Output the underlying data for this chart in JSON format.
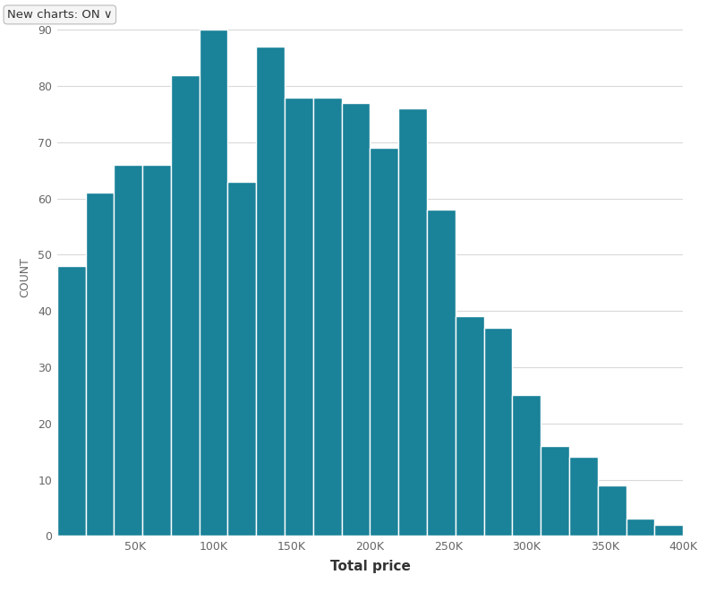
{
  "bar_heights": [
    48,
    61,
    66,
    66,
    82,
    90,
    63,
    87,
    78,
    78,
    77,
    69,
    76,
    58,
    39,
    37,
    25,
    16,
    14,
    9,
    3,
    2
  ],
  "n_bars": 22,
  "total_range": 400000,
  "bar_color": "#1a8299",
  "bar_edge_color": "#ffffff",
  "bar_edge_width": 1.0,
  "background_color": "#ffffff",
  "xlabel": "Total price",
  "ylabel": "COUNT",
  "xlabel_fontsize": 11,
  "ylabel_fontsize": 9,
  "yticks": [
    0,
    10,
    20,
    30,
    40,
    50,
    60,
    70,
    80,
    90
  ],
  "xtick_positions": [
    0,
    50000,
    100000,
    150000,
    200000,
    250000,
    300000,
    350000,
    400000
  ],
  "xtick_labels": [
    "",
    "50K",
    "100K",
    "150K",
    "200K",
    "250K",
    "300K",
    "350K",
    "400K"
  ],
  "ylim_max": 92,
  "grid_color": "#d9d9d9",
  "button_text": "New charts: ON ∨",
  "button_fontsize": 9.5,
  "button_box_color": "#f5f5f5",
  "button_text_color": "#333333",
  "button_border_color": "#bbbbbb"
}
